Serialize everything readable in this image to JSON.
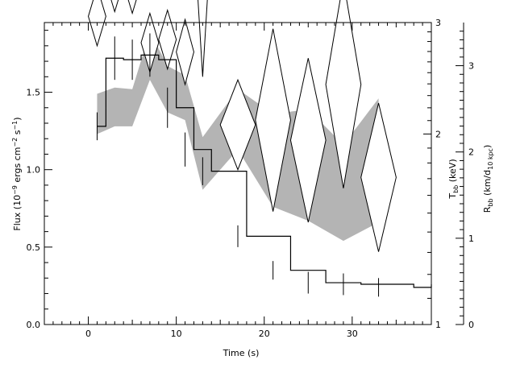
{
  "chart_data": {
    "type": "line",
    "xlabel": "Time (s)",
    "ylabel_left": "Flux (10⁻⁹ ergs cm⁻² s⁻¹)",
    "ylabel_right_inner": "Tₐ (keV)",
    "ylabel_right_inner_text": "T",
    "ylabel_right_inner_sub": "bb",
    "ylabel_right_inner_rest": " (keV)",
    "ylabel_right_outer_text": "R",
    "ylabel_right_outer_sub": "bb",
    "ylabel_right_outer_rest1": " (km/d",
    "ylabel_right_outer_sub2": "10 kpc",
    "ylabel_right_outer_rest2": ")",
    "xlim": [
      -5,
      39
    ],
    "ylim": [
      0,
      1.95
    ],
    "x_ticks": [
      0,
      10,
      20,
      30
    ],
    "x_tick_labels": [
      "0",
      "10",
      "20",
      "30"
    ],
    "y_ticks": [
      0.0,
      0.5,
      1.0,
      1.5
    ],
    "y_tick_labels": [
      "0.0",
      "0.5",
      "1.0",
      "1.5"
    ],
    "temperature_axis": {
      "ticks": [
        1,
        2,
        3
      ],
      "tick_labels": [
        "1",
        "2",
        "3"
      ],
      "scale": "log",
      "range": [
        1,
        3
      ]
    },
    "radius_axis": {
      "ticks": [
        0,
        1,
        2,
        3
      ],
      "tick_labels": [
        "0",
        "1",
        "2",
        "3"
      ],
      "range": [
        0,
        3.5
      ]
    },
    "flux_series": {
      "name": "Flux",
      "style": "histogram",
      "edges": [
        1,
        2,
        4,
        6,
        8,
        10,
        12,
        14,
        16,
        18,
        20,
        23,
        27,
        31,
        37,
        39
      ],
      "values": [
        1.28,
        1.72,
        1.71,
        1.74,
        1.71,
        1.4,
        1.13,
        0.99,
        0.99,
        0.57,
        0.57,
        0.35,
        0.27,
        0.26,
        0.24,
        0.26
      ],
      "points": [
        {
          "x": 1,
          "y": 1.28,
          "err": 0.09
        },
        {
          "x": 3,
          "y": 1.72,
          "err": 0.14
        },
        {
          "x": 5,
          "y": 1.71,
          "err": 0.13
        },
        {
          "x": 7,
          "y": 1.74,
          "err": 0.14
        },
        {
          "x": 9,
          "y": 1.4,
          "err": 0.13
        },
        {
          "x": 11,
          "y": 1.13,
          "err": 0.11
        },
        {
          "x": 13,
          "y": 0.99,
          "err": 0.09
        },
        {
          "x": 17,
          "y": 0.57,
          "err": 0.07
        },
        {
          "x": 21,
          "y": 0.35,
          "err": 0.06
        },
        {
          "x": 25,
          "y": 0.27,
          "err": 0.07
        },
        {
          "x": 29,
          "y": 0.26,
          "err": 0.07
        },
        {
          "x": 33,
          "y": 0.24,
          "err": 0.06
        }
      ]
    },
    "temperature_band": {
      "name": "T_bb",
      "x": [
        1,
        3,
        5,
        7,
        9,
        11,
        13,
        17,
        21,
        25,
        29,
        33
      ],
      "upper": [
        1.49,
        1.53,
        1.52,
        1.89,
        1.67,
        1.61,
        1.21,
        1.52,
        1.36,
        1.39,
        1.16,
        1.46
      ],
      "lower": [
        1.23,
        1.28,
        1.28,
        1.58,
        1.37,
        1.32,
        0.87,
        1.13,
        0.76,
        0.67,
        0.54,
        0.66
      ]
    },
    "radius_points": {
      "name": "R_bb",
      "points": [
        {
          "x": 1,
          "y": 1.99,
          "xerr": 1,
          "yerr": 0.19
        },
        {
          "x": 3,
          "y": 2.21,
          "xerr": 1,
          "yerr": 0.19
        },
        {
          "x": 5,
          "y": 2.2,
          "xerr": 1,
          "yerr": 0.19
        },
        {
          "x": 7,
          "y": 1.82,
          "xerr": 1,
          "yerr": 0.19
        },
        {
          "x": 9,
          "y": 1.84,
          "xerr": 1,
          "yerr": 0.19
        },
        {
          "x": 11,
          "y": 1.76,
          "xerr": 1,
          "yerr": 0.21
        },
        {
          "x": 13,
          "y": 2.16,
          "xerr": 0.6,
          "yerr": 0.56
        },
        {
          "x": 17,
          "y": 1.29,
          "xerr": 2,
          "yerr": 0.29
        },
        {
          "x": 21,
          "y": 1.32,
          "xerr": 2,
          "yerr": 0.59
        },
        {
          "x": 25,
          "y": 1.19,
          "xerr": 2,
          "yerr": 0.53
        },
        {
          "x": 29,
          "y": 1.55,
          "xerr": 2,
          "yerr": 0.67
        },
        {
          "x": 33,
          "y": 0.95,
          "xerr": 2,
          "yerr": 0.48
        }
      ]
    },
    "grid": false,
    "colors": {
      "band": "#b4b4b4",
      "lines": "#000000",
      "background": "#ffffff"
    }
  }
}
